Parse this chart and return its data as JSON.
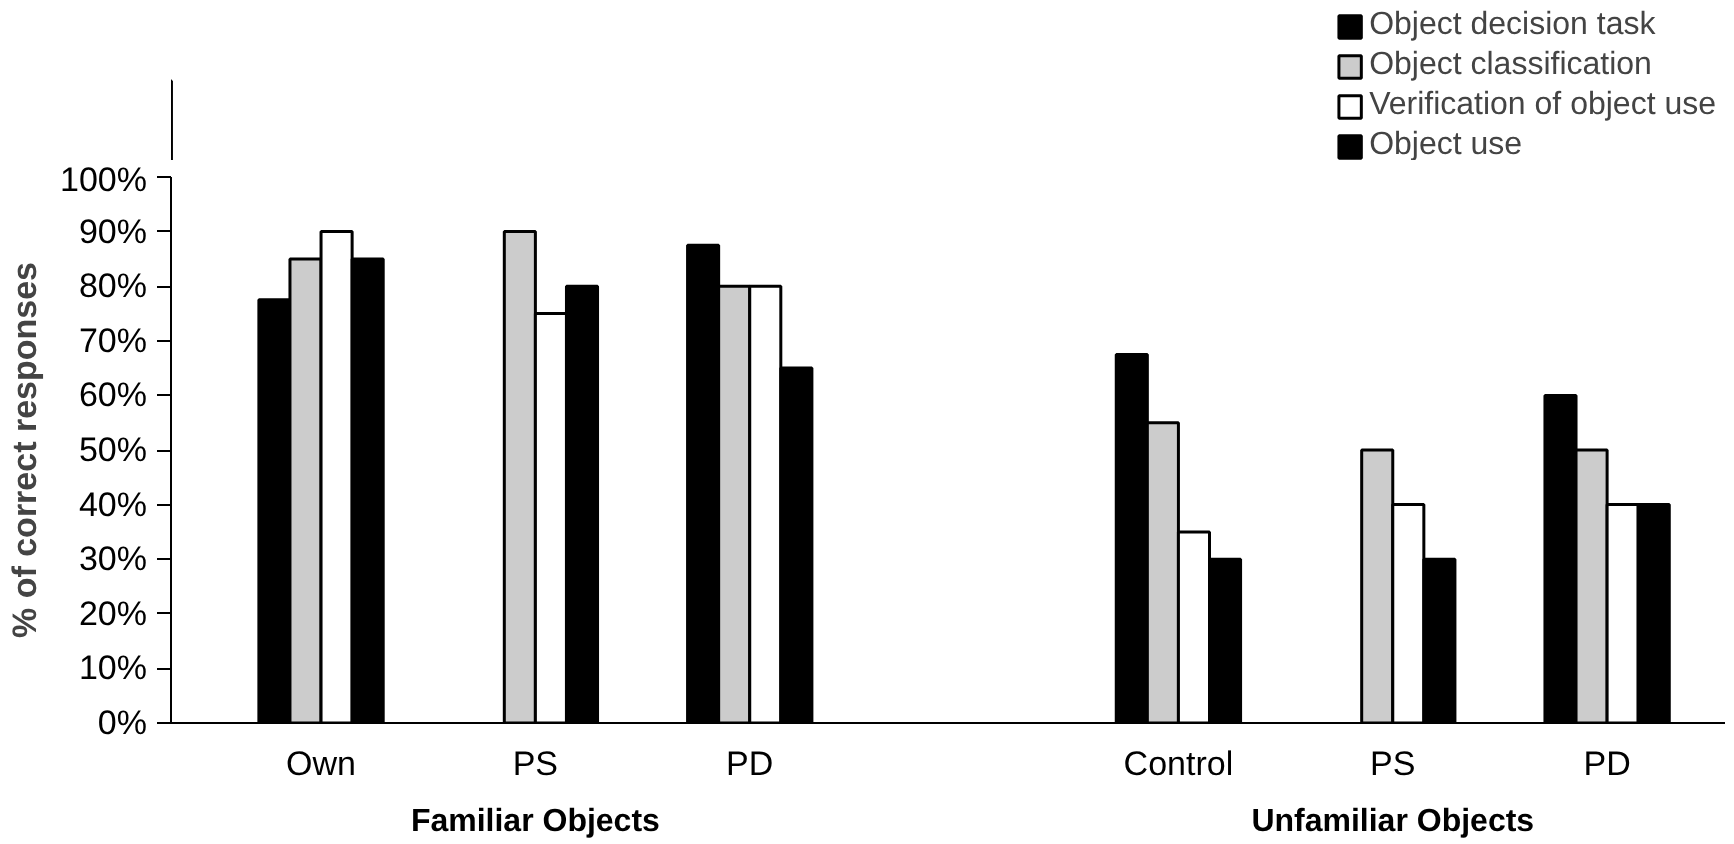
{
  "chart_data": {
    "type": "bar",
    "ylabel": "% of correct responses",
    "categories": [
      "Own",
      "PS",
      "PD",
      null,
      "Control",
      "PS",
      "PD"
    ],
    "series": [
      {
        "name": "Object decision task",
        "color": "#000000",
        "values": [
          77.5,
          null,
          87.5,
          null,
          67.5,
          null,
          60
        ]
      },
      {
        "name": "Object classification",
        "color": "#cccccc",
        "values": [
          85,
          90,
          80,
          null,
          55,
          50,
          50
        ]
      },
      {
        "name": "Verification of object use",
        "color": "#ffffff",
        "values": [
          90,
          75,
          80,
          null,
          35,
          40,
          40
        ]
      },
      {
        "name": "Object use",
        "color": "#000000",
        "values": [
          85,
          80,
          65,
          null,
          30,
          30,
          40
        ]
      }
    ],
    "ylim": [
      0,
      100
    ],
    "yticks": [
      {
        "value": 0,
        "label": "0%"
      },
      {
        "value": 10,
        "label": "10%"
      },
      {
        "value": 20,
        "label": "20%"
      },
      {
        "value": 30,
        "label": "30%"
      },
      {
        "value": 40,
        "label": "40%"
      },
      {
        "value": 50,
        "label": "50%"
      },
      {
        "value": 60,
        "label": "60%"
      },
      {
        "value": 70,
        "label": "70%"
      },
      {
        "value": 80,
        "label": "80%"
      },
      {
        "value": 90,
        "label": "90%"
      },
      {
        "value": 100,
        "label": "100%"
      }
    ],
    "annotations": [
      "Familiar Objects",
      "Unfamiliar Objects"
    ],
    "grid": false,
    "legend": "top right"
  }
}
